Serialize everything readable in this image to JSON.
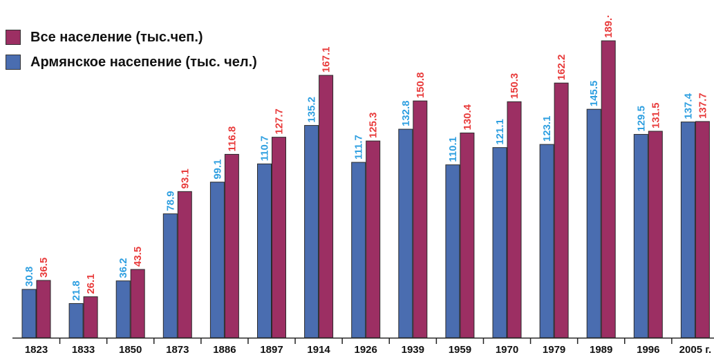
{
  "chart_data": {
    "type": "bar",
    "categories": [
      "1823",
      "1833",
      "1850",
      "1873",
      "1886",
      "1897",
      "1914",
      "1926",
      "1939",
      "1959",
      "1970",
      "1979",
      "1989",
      "1996",
      "2005 г."
    ],
    "series": [
      {
        "name": "Армянское насепение (тыс. чел.)",
        "color": "#4a6db0",
        "label_color": "#2e9fe0",
        "values": [
          30.8,
          21.8,
          36.2,
          78.9,
          99.1,
          110.7,
          135.2,
          111.7,
          132.8,
          110.1,
          121.1,
          123.1,
          145.5,
          129.5,
          137.4
        ],
        "labels": [
          "30.8",
          "21.8",
          "36.2",
          "78.9",
          "99.1",
          "110.7",
          "135.2",
          "111.7",
          "132.8",
          "110.1",
          "121.1",
          "123.1",
          "145.5",
          "129.5",
          "137.4"
        ]
      },
      {
        "name": "Все население (тыс.чеп.)",
        "color": "#9c2f63",
        "label_color": "#e83b3b",
        "values": [
          36.5,
          26.1,
          43.5,
          93.1,
          116.8,
          127.7,
          167.1,
          125.3,
          150.8,
          130.4,
          150.3,
          162.2,
          189.1,
          131.5,
          137.7
        ],
        "labels": [
          "36.5",
          "26.1",
          "43.5",
          "93.1",
          "116.8",
          "127.7",
          "167.1",
          "125.3",
          "150.8",
          "130.4",
          "150.3",
          "162.2",
          "189.·",
          "131.5",
          "137.7"
        ]
      }
    ],
    "ylim": [
      0,
      190
    ],
    "grid": false,
    "legend_position": "top-left"
  },
  "legend": [
    {
      "label": "Все население (тыс.чеп.)",
      "color": "#9c2f63"
    },
    {
      "label": "Армянское насепение (тыс. чел.)",
      "color": "#4a6db0"
    }
  ]
}
